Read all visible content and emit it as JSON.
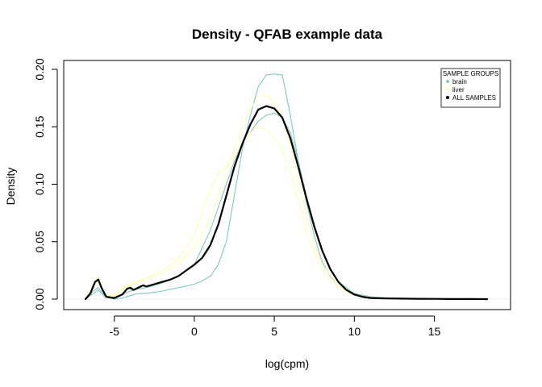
{
  "chart_data": {
    "type": "line",
    "title": "Density - QFAB example data",
    "xlabel": "log(cpm)",
    "ylabel": "Density",
    "xlim": [
      -7,
      19
    ],
    "ylim": [
      0,
      0.2
    ],
    "xticks": [
      -5,
      0,
      5,
      10,
      15
    ],
    "yticks": [
      0.0,
      0.05,
      0.1,
      0.15,
      0.2
    ],
    "xtick_labels": [
      "-5",
      "0",
      "5",
      "10",
      "15"
    ],
    "ytick_labels": [
      "0.00",
      "0.05",
      "0.10",
      "0.15",
      "0.20"
    ],
    "legend": {
      "title": "SAMPLE GROUPS",
      "position": "top-right",
      "entries": [
        {
          "label": "brain",
          "color": "#7fc8c0"
        },
        {
          "label": "liver",
          "color": "#ffffb0"
        },
        {
          "label": "ALL SAMPLES",
          "color": "#000000"
        }
      ]
    },
    "series": [
      {
        "group": "brain",
        "color": "#7fc8c0",
        "x": [
          -6.8,
          -6.3,
          -6.0,
          -5.6,
          -5.0,
          -4.5,
          -4.0,
          -3.5,
          -3.0,
          -2.5,
          -2.0,
          -1.0,
          0.0,
          0.5,
          1.0,
          1.5,
          2.0,
          2.5,
          3.0,
          3.5,
          4.0,
          4.5,
          5.0,
          5.5,
          6.0,
          6.5,
          7.0,
          7.5,
          8.0,
          8.5,
          9.0,
          10.0,
          11.0,
          12.0,
          13.0,
          15.0,
          18.3
        ],
        "y": [
          0.0,
          0.005,
          0.008,
          0.002,
          0.0,
          0.001,
          0.003,
          0.005,
          0.005,
          0.006,
          0.007,
          0.01,
          0.013,
          0.016,
          0.02,
          0.03,
          0.05,
          0.09,
          0.13,
          0.16,
          0.185,
          0.195,
          0.196,
          0.195,
          0.16,
          0.12,
          0.085,
          0.055,
          0.032,
          0.02,
          0.012,
          0.004,
          0.0015,
          0.0008,
          0.0005,
          0.0002,
          0.0
        ]
      },
      {
        "group": "brain",
        "color": "#7fc8c0",
        "x": [
          -6.8,
          -6.3,
          -6.0,
          -5.6,
          -5.0,
          -4.5,
          -4.0,
          -3.5,
          -3.0,
          -2.0,
          -1.0,
          0.0,
          1.0,
          1.5,
          2.0,
          2.5,
          3.0,
          3.5,
          4.0,
          4.5,
          5.0,
          5.5,
          6.0,
          6.5,
          7.0,
          7.5,
          8.0,
          8.5,
          9.0,
          10.0,
          11.0,
          12.0,
          13.0,
          15.0,
          18.3
        ],
        "y": [
          0.0,
          0.007,
          0.01,
          0.003,
          0.0,
          0.004,
          0.007,
          0.009,
          0.01,
          0.014,
          0.02,
          0.03,
          0.06,
          0.08,
          0.1,
          0.12,
          0.135,
          0.145,
          0.155,
          0.16,
          0.162,
          0.158,
          0.145,
          0.12,
          0.09,
          0.065,
          0.042,
          0.026,
          0.015,
          0.005,
          0.002,
          0.001,
          0.0005,
          0.0002,
          0.0
        ]
      },
      {
        "group": "liver",
        "color": "#ffffb0",
        "x": [
          -6.8,
          -6.3,
          -6.0,
          -5.6,
          -5.0,
          -4.5,
          -4.0,
          -3.5,
          -3.0,
          -2.0,
          -1.0,
          0.0,
          0.5,
          1.0,
          1.5,
          2.0,
          2.5,
          3.0,
          3.5,
          4.0,
          4.5,
          5.0,
          5.5,
          6.0,
          6.5,
          7.0,
          7.5,
          8.0,
          9.0,
          10.0,
          11.0,
          12.0,
          13.0,
          15.0,
          18.3
        ],
        "y": [
          0.0,
          0.01,
          0.016,
          0.004,
          0.002,
          0.008,
          0.012,
          0.015,
          0.018,
          0.025,
          0.035,
          0.055,
          0.075,
          0.095,
          0.11,
          0.115,
          0.125,
          0.135,
          0.145,
          0.15,
          0.148,
          0.14,
          0.13,
          0.11,
          0.085,
          0.06,
          0.04,
          0.025,
          0.01,
          0.003,
          0.001,
          0.0005,
          0.0003,
          0.0001,
          0.0
        ]
      },
      {
        "group": "liver",
        "color": "#ffffb0",
        "x": [
          -6.8,
          -6.3,
          -6.0,
          -5.6,
          -5.0,
          -4.5,
          -4.0,
          -3.5,
          -3.0,
          -2.0,
          -1.0,
          0.0,
          1.0,
          1.5,
          2.0,
          2.5,
          3.0,
          3.5,
          4.0,
          4.5,
          5.0,
          5.5,
          6.0,
          6.5,
          7.0,
          7.5,
          8.0,
          9.0,
          10.0,
          11.0,
          12.0,
          13.0,
          15.0,
          18.3
        ],
        "y": [
          0.0,
          0.012,
          0.02,
          0.004,
          0.003,
          0.01,
          0.013,
          0.016,
          0.018,
          0.022,
          0.03,
          0.045,
          0.07,
          0.09,
          0.11,
          0.13,
          0.15,
          0.165,
          0.176,
          0.178,
          0.172,
          0.158,
          0.135,
          0.105,
          0.075,
          0.05,
          0.03,
          0.012,
          0.004,
          0.0015,
          0.0008,
          0.0004,
          0.0001,
          0.0
        ]
      },
      {
        "group": "ALL SAMPLES",
        "color": "#000000",
        "x": [
          -6.8,
          -6.5,
          -6.2,
          -6.0,
          -5.8,
          -5.5,
          -5.0,
          -4.5,
          -4.2,
          -4.0,
          -3.8,
          -3.5,
          -3.2,
          -3.0,
          -2.5,
          -2.0,
          -1.5,
          -1.0,
          -0.5,
          0.0,
          0.5,
          1.0,
          1.5,
          2.0,
          2.5,
          3.0,
          3.5,
          4.0,
          4.5,
          5.0,
          5.5,
          6.0,
          6.5,
          7.0,
          7.5,
          8.0,
          8.5,
          9.0,
          9.5,
          10.0,
          10.5,
          11.0,
          12.0,
          13.0,
          14.0,
          15.0,
          16.0,
          17.0,
          18.3
        ],
        "y": [
          0.0,
          0.005,
          0.015,
          0.017,
          0.01,
          0.002,
          0.001,
          0.004,
          0.009,
          0.01,
          0.008,
          0.01,
          0.012,
          0.011,
          0.013,
          0.015,
          0.017,
          0.02,
          0.025,
          0.03,
          0.036,
          0.047,
          0.065,
          0.09,
          0.115,
          0.135,
          0.152,
          0.165,
          0.168,
          0.166,
          0.158,
          0.14,
          0.115,
          0.088,
          0.063,
          0.042,
          0.026,
          0.015,
          0.008,
          0.004,
          0.002,
          0.001,
          0.0006,
          0.0004,
          0.0003,
          0.0002,
          0.0001,
          0.0001,
          0.0
        ]
      }
    ]
  }
}
